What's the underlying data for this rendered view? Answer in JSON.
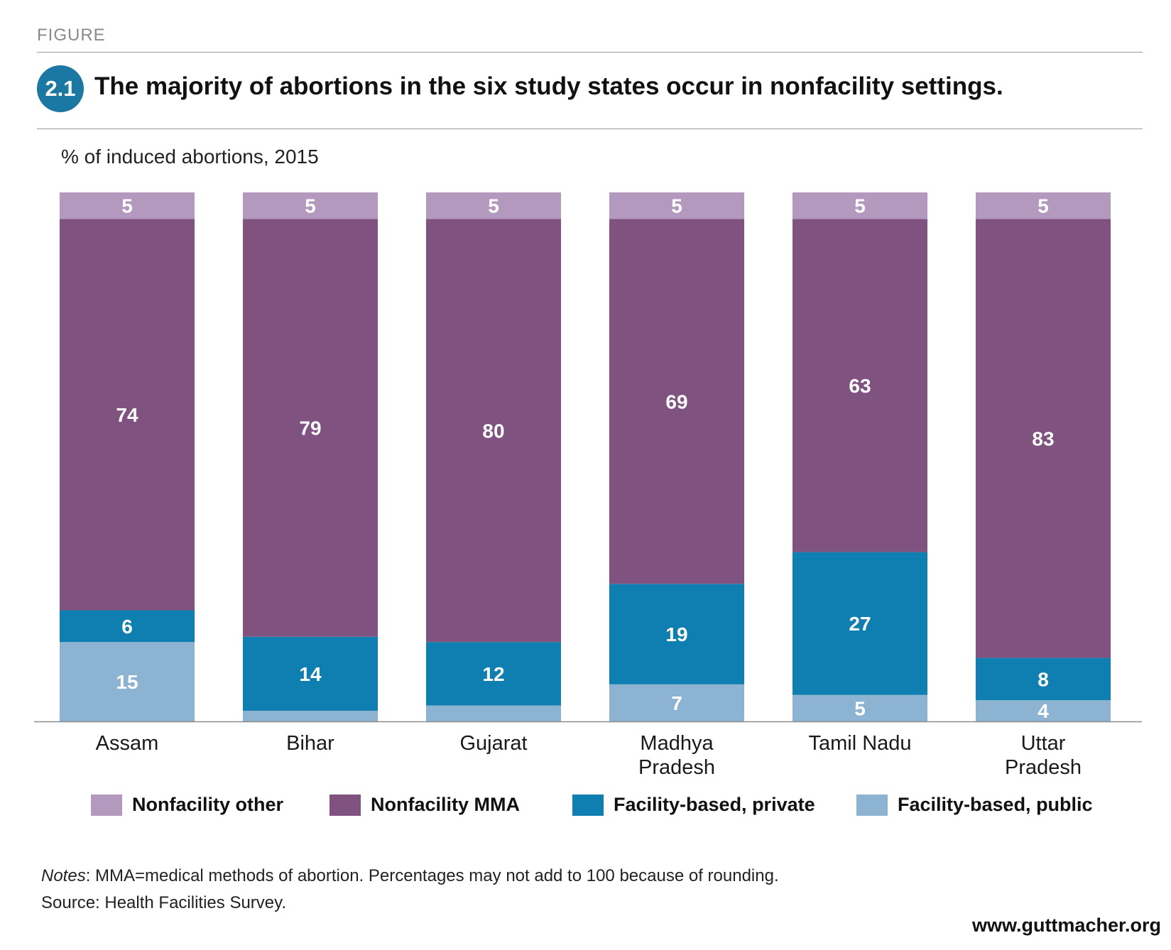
{
  "header": {
    "figure_label": "FIGURE",
    "number": "2.1",
    "title": "The majority of abortions in the six study states occur in nonfacility settings."
  },
  "notes": {
    "notes_label": "Notes",
    "notes_text": ": MMA=medical methods of abortion. Percentages may not add to 100 because of rounding.",
    "source_text": "Source: Health Facilities Survey."
  },
  "footer": {
    "url": "www.guttmacher.org"
  },
  "colors": {
    "nonfacility_other": "#b399bd",
    "nonfacility_mma": "#7f527f",
    "facility_private": "#0f7eb0",
    "facility_public": "#8db3d3",
    "badge": "#1b78a3"
  },
  "chart_data": {
    "type": "bar",
    "stacked": true,
    "title": "The majority of abortions in the six study states occur in nonfacility settings.",
    "ylabel": "% of induced abortions, 2015",
    "ylim": [
      0,
      100
    ],
    "grid": false,
    "legend_position": "bottom",
    "categories": [
      [
        "Assam"
      ],
      [
        "Bihar"
      ],
      [
        "Gujarat"
      ],
      [
        "Madhya",
        "Pradesh"
      ],
      [
        "Tamil Nadu"
      ],
      [
        "Uttar",
        "Pradesh"
      ]
    ],
    "series": [
      {
        "name": "Facility-based, public",
        "key": "facility_public",
        "values": [
          15,
          2,
          3,
          7,
          5,
          4
        ],
        "labels": [
          "15",
          "",
          "",
          "7",
          "5",
          "4"
        ]
      },
      {
        "name": "Facility-based, private",
        "key": "facility_private",
        "values": [
          6,
          14,
          12,
          19,
          27,
          8
        ],
        "labels": [
          "6",
          "14",
          "12",
          "19",
          "27",
          "8"
        ]
      },
      {
        "name": "Nonfacility MMA",
        "key": "nonfacility_mma",
        "values": [
          74,
          79,
          80,
          69,
          63,
          83
        ],
        "labels": [
          "74",
          "79",
          "80",
          "69",
          "63",
          "83"
        ]
      },
      {
        "name": "Nonfacility other",
        "key": "nonfacility_other",
        "values": [
          5,
          5,
          5,
          5,
          5,
          5
        ],
        "labels": [
          "5",
          "5",
          "5",
          "5",
          "5",
          "5"
        ]
      }
    ],
    "legend_order": [
      "Nonfacility other",
      "Nonfacility MMA",
      "Facility-based, private",
      "Facility-based, public"
    ]
  }
}
